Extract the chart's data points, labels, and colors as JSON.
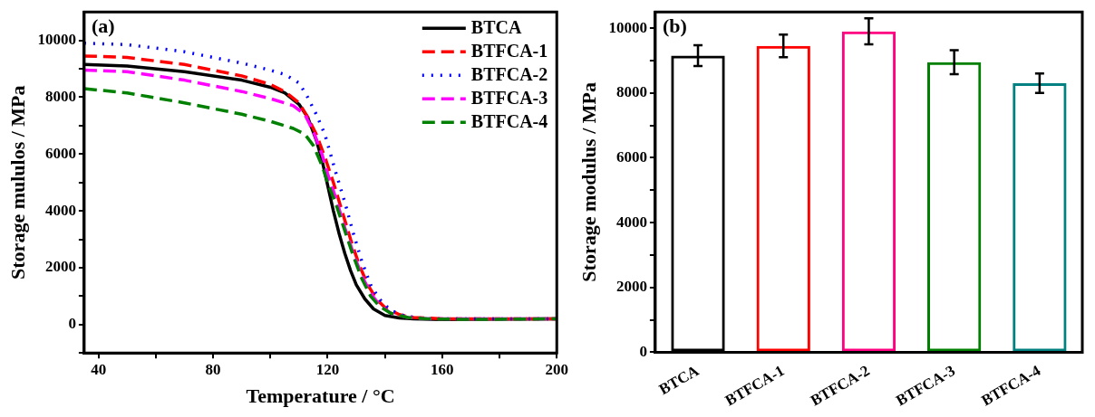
{
  "chart_data": [
    {
      "type": "line",
      "xlabel": "Temperature / °C",
      "ylabel": "Storage mululos / MPa",
      "annotations": [
        "(a)"
      ],
      "legend": "top right",
      "grid": false,
      "xlim": [
        35,
        200
      ],
      "xticks": [
        40,
        {
          "value": 60,
          "label": null
        },
        80,
        {
          "value": 100,
          "label": null
        },
        120,
        {
          "value": 140,
          "label": null
        },
        160,
        {
          "value": 180,
          "label": null
        },
        200
      ],
      "ylim": [
        -1000,
        11000
      ],
      "yticks": [
        {
          "value": -1000,
          "label": null
        },
        0,
        {
          "value": 1000,
          "label": null
        },
        2000,
        {
          "value": 3000,
          "label": null
        },
        4000,
        {
          "value": 5000,
          "label": null
        },
        6000,
        {
          "value": 7000,
          "label": null
        },
        8000,
        {
          "value": 9000,
          "label": null
        },
        10000
      ],
      "series": [
        {
          "name": "BTCA",
          "color": "#000000",
          "line_style": "solid",
          "x": [
            35,
            50,
            70,
            90,
            100,
            105,
            110,
            113,
            116,
            118,
            120,
            122,
            124,
            126,
            128,
            130,
            133,
            136,
            140,
            145,
            150,
            160,
            200
          ],
          "values": [
            9150,
            9100,
            8900,
            8600,
            8350,
            8150,
            7750,
            7300,
            6500,
            5800,
            4900,
            4000,
            3200,
            2500,
            1900,
            1400,
            900,
            550,
            320,
            230,
            200,
            180,
            200
          ]
        },
        {
          "name": "BTFCA-1",
          "color": "#ff0000",
          "line_style": "dashed",
          "x": [
            35,
            50,
            70,
            90,
            100,
            105,
            110,
            113,
            116,
            119,
            122,
            125,
            128,
            131,
            134,
            137,
            140,
            145,
            150,
            160,
            200
          ],
          "values": [
            9450,
            9400,
            9150,
            8750,
            8450,
            8200,
            7800,
            7300,
            6700,
            5900,
            5000,
            4000,
            3000,
            2100,
            1400,
            900,
            600,
            350,
            250,
            200,
            200
          ]
        },
        {
          "name": "BTFCA-2",
          "color": "#0000ff",
          "line_style": "dotted",
          "x": [
            35,
            50,
            70,
            90,
            100,
            105,
            110,
            113,
            116,
            119,
            121,
            123,
            126,
            129,
            132,
            135,
            138,
            142,
            147,
            155,
            200
          ],
          "values": [
            9900,
            9850,
            9600,
            9200,
            8950,
            8800,
            8500,
            8000,
            7400,
            6700,
            6000,
            5300,
            4300,
            3200,
            2200,
            1400,
            900,
            500,
            300,
            200,
            200
          ]
        },
        {
          "name": "BTFCA-3",
          "color": "#ff00ff",
          "line_style": "dashed",
          "x": [
            35,
            50,
            70,
            90,
            100,
            108,
            112,
            115,
            118,
            120,
            123,
            126,
            129,
            132,
            135,
            138,
            142,
            148,
            155,
            200
          ],
          "values": [
            8950,
            8900,
            8600,
            8200,
            7950,
            7700,
            7400,
            6800,
            6000,
            5300,
            4400,
            3400,
            2500,
            1700,
            1100,
            700,
            400,
            250,
            200,
            200
          ]
        },
        {
          "name": "BTFCA-4",
          "color": "#008000",
          "line_style": "dashed",
          "x": [
            35,
            50,
            70,
            90,
            100,
            108,
            112,
            115,
            118,
            120,
            123,
            126,
            129,
            132,
            135,
            138,
            142,
            148,
            155,
            170,
            200
          ],
          "values": [
            8300,
            8150,
            7800,
            7400,
            7150,
            6900,
            6700,
            6300,
            5600,
            5000,
            4200,
            3300,
            2400,
            1600,
            1000,
            650,
            400,
            250,
            200,
            180,
            200
          ]
        }
      ]
    },
    {
      "type": "bar",
      "ylabel": "Storage modulus / MPa",
      "annotations": [
        "(b)"
      ],
      "grid": false,
      "categories": [
        "BTCA",
        "BTFCA-1",
        "BTFCA-2",
        "BTFCA-3",
        "BTFCA-4"
      ],
      "values": [
        9150,
        9450,
        9900,
        8950,
        8300
      ],
      "errors": [
        320,
        350,
        400,
        370,
        300
      ],
      "colors": [
        "#000000",
        "#ff0000",
        "#ff0080",
        "#008000",
        "#008080"
      ],
      "ylim": [
        0,
        10500
      ],
      "yticks": [
        0,
        {
          "value": 1000,
          "label": null
        },
        2000,
        {
          "value": 3000,
          "label": null
        },
        4000,
        {
          "value": 5000,
          "label": null
        },
        6000,
        {
          "value": 7000,
          "label": null
        },
        8000,
        {
          "value": 9000,
          "label": null
        },
        10000
      ]
    }
  ]
}
